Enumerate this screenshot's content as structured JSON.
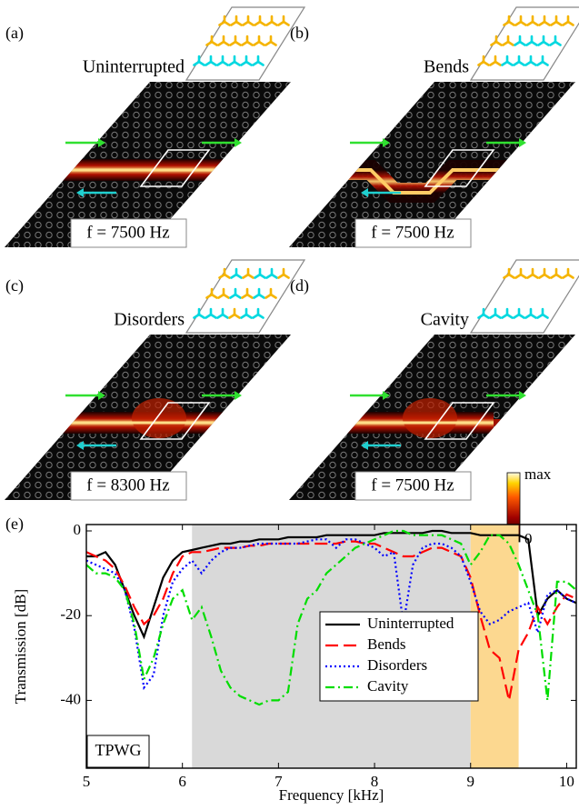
{
  "panels": [
    {
      "label": "(a)",
      "title": "Uninterrupted",
      "frequency": "f = 7500 Hz"
    },
    {
      "label": "(b)",
      "title": "Bends",
      "frequency": "f = 7500 Hz"
    },
    {
      "label": "(c)",
      "title": "Disorders",
      "frequency": "f = 8300 Hz"
    },
    {
      "label": "(d)",
      "title": "Cavity",
      "frequency": "f = 7500 Hz"
    }
  ],
  "colorbar": {
    "max": "max",
    "min": "0"
  },
  "chart_data": {
    "type": "line",
    "panel_label": "(e)",
    "x_label": "Frequency [kHz]",
    "y_label": "Transmission [dB]",
    "annotation": "TPWG",
    "x": [
      5.0,
      5.1,
      5.2,
      5.3,
      5.4,
      5.5,
      5.6,
      5.7,
      5.8,
      5.9,
      6.0,
      6.1,
      6.2,
      6.3,
      6.4,
      6.5,
      6.6,
      6.7,
      6.8,
      6.9,
      7.0,
      7.1,
      7.2,
      7.3,
      7.4,
      7.5,
      7.6,
      7.7,
      7.8,
      7.9,
      8.0,
      8.1,
      8.2,
      8.3,
      8.4,
      8.5,
      8.6,
      8.7,
      8.8,
      8.9,
      9.0,
      9.1,
      9.2,
      9.3,
      9.4,
      9.5,
      9.6,
      9.7,
      9.8,
      9.9,
      10.0,
      10.1
    ],
    "series": [
      {
        "name": "Uninterrupted",
        "color": "#000000",
        "style": "solid",
        "values": [
          -6,
          -6,
          -5,
          -8,
          -14,
          -20,
          -25,
          -18,
          -11,
          -7,
          -5,
          -4.5,
          -4,
          -3.5,
          -3,
          -3,
          -2.5,
          -2.5,
          -2,
          -2,
          -2,
          -1.5,
          -1.5,
          -1.5,
          -1.5,
          -1,
          -1,
          -1,
          -1,
          -1,
          -1,
          -0.5,
          -0.5,
          -0.5,
          -0.5,
          -0.5,
          0,
          0,
          -0.5,
          -0.5,
          -0.5,
          -1,
          -1,
          -1,
          -1,
          -1,
          -2,
          -20,
          -16,
          -14,
          -16,
          -17
        ]
      },
      {
        "name": "Bends",
        "color": "#ff0000",
        "style": "dashed",
        "values": [
          -5,
          -6,
          -7,
          -9,
          -13,
          -18,
          -22,
          -20,
          -16,
          -10,
          -6,
          -5,
          -5,
          -4.5,
          -4,
          -4,
          -4,
          -3.5,
          -3.5,
          -3,
          -3,
          -3,
          -3,
          -3,
          -3,
          -3,
          -3,
          -2.5,
          -2.5,
          -3,
          -3,
          -4,
          -5,
          -6,
          -6,
          -5,
          -4,
          -4,
          -5,
          -6,
          -11,
          -20,
          -28,
          -30,
          -40,
          -28,
          -24,
          -18,
          -22,
          -18,
          -15,
          -16
        ]
      },
      {
        "name": "Disorders",
        "color": "#0000ff",
        "style": "dotted",
        "values": [
          -7,
          -8,
          -9,
          -10,
          -14,
          -23,
          -37,
          -34,
          -20,
          -12,
          -9,
          -7,
          -10,
          -7,
          -5,
          -4,
          -4,
          -3.5,
          -3,
          -3,
          -3,
          -3,
          -3,
          -2.5,
          -2,
          -2,
          -4,
          -2,
          -2,
          -3,
          -4,
          -6,
          -5,
          -22,
          -8,
          -4,
          -3,
          -3,
          -4,
          -6,
          -12,
          -19,
          -22,
          -21,
          -19,
          -18,
          -17,
          -24,
          -15,
          -14,
          -16,
          -17
        ]
      },
      {
        "name": "Cavity",
        "color": "#00dd00",
        "style": "dashdot",
        "values": [
          -8,
          -10,
          -10,
          -11,
          -14,
          -22,
          -35,
          -30,
          -22,
          -16,
          -14,
          -21,
          -18,
          -25,
          -33,
          -37,
          -39,
          -40,
          -41,
          -40,
          -40,
          -38,
          -22,
          -16,
          -14,
          -10,
          -8,
          -6,
          -4,
          -3,
          -2,
          -1,
          0,
          0,
          -1,
          -1,
          -1,
          -1,
          -2,
          -3,
          -8,
          -5,
          -1,
          -1,
          -3,
          -8,
          -14,
          -20,
          -40,
          -12,
          -12,
          -14
        ]
      }
    ],
    "shaded_regions": [
      {
        "range": [
          6.1,
          9.0
        ],
        "color": "#d9d9d9"
      },
      {
        "range": [
          9.0,
          9.5
        ],
        "color": "#fcd890"
      }
    ],
    "xlim": [
      5,
      10.1
    ],
    "xticks": [
      5,
      6,
      7,
      8,
      9,
      10
    ],
    "ylim": [
      -56,
      1.5
    ],
    "yticks": [
      0,
      -20,
      -40
    ]
  }
}
